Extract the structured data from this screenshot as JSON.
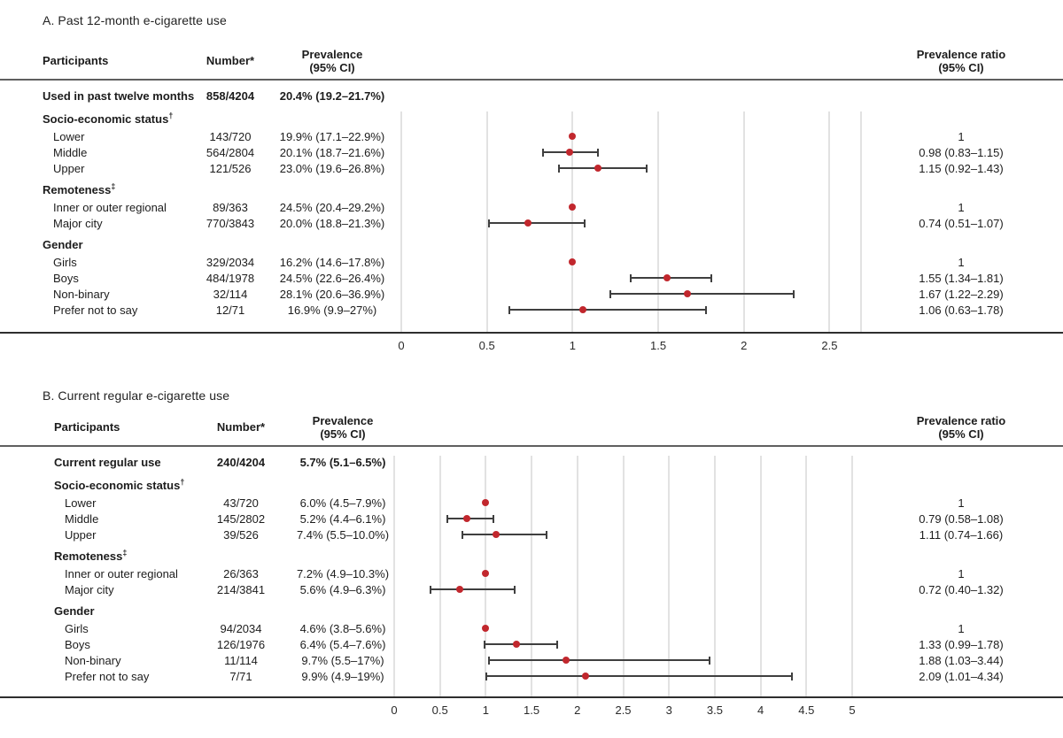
{
  "figure": {
    "colors": {
      "point_red": "#c1272d",
      "ci_whisker": "#3f3f3f",
      "gridline": "#c4c4c4",
      "text": "#1c1c1c"
    }
  },
  "chart_data": [
    {
      "panel": "A",
      "type": "scatter",
      "title": "A. Past 12-month e-cigarette use",
      "headers": {
        "participants": "Participants",
        "number": "Number*",
        "prevalence": [
          "Prevalence",
          "(95% CI)"
        ],
        "ratio": [
          "Prevalence ratio",
          "(95% CI)"
        ]
      },
      "axis": {
        "label": "prevalence ratio",
        "min": 0,
        "max": 2.684,
        "tick_values": [
          0,
          0.5,
          1,
          1.5,
          2,
          2.5
        ],
        "tick_labels": [
          "0",
          "0.5",
          "1",
          "1.5",
          "2",
          "2.5"
        ],
        "grid": true,
        "edge_line": true
      },
      "rows": [
        {
          "type": "overall",
          "label": "Used in past twelve months",
          "number": "858/4204",
          "prevalence": "20.4% (19.2–21.7%)"
        },
        {
          "type": "group",
          "label": "Socio-economic status",
          "sup": "†"
        },
        {
          "type": "item",
          "label": "Lower",
          "number": "143/720",
          "prevalence": "19.9% (17.1–22.9%)",
          "ratio_text": "1",
          "est": 1
        },
        {
          "type": "item",
          "label": "Middle",
          "number": "564/2804",
          "prevalence": "20.1% (18.7–21.6%)",
          "ratio_text": "0.98 (0.83–1.15)",
          "est": 0.98,
          "lo": 0.83,
          "hi": 1.15
        },
        {
          "type": "item",
          "label": "Upper",
          "number": "121/526",
          "prevalence": "23.0% (19.6–26.8%)",
          "ratio_text": "1.15 (0.92–1.43)",
          "est": 1.15,
          "lo": 0.92,
          "hi": 1.43
        },
        {
          "type": "group",
          "label": "Remoteness",
          "sup": "‡"
        },
        {
          "type": "item",
          "label": "Inner or outer regional",
          "number": "89/363",
          "prevalence": "24.5% (20.4–29.2%)",
          "ratio_text": "1",
          "est": 1
        },
        {
          "type": "item",
          "label": "Major city",
          "number": "770/3843",
          "prevalence": "20.0% (18.8–21.3%)",
          "ratio_text": "0.74 (0.51–1.07)",
          "est": 0.74,
          "lo": 0.51,
          "hi": 1.07
        },
        {
          "type": "group",
          "label": "Gender"
        },
        {
          "type": "item",
          "label": "Girls",
          "number": "329/2034",
          "prevalence": "16.2% (14.6–17.8%)",
          "ratio_text": "1",
          "est": 1
        },
        {
          "type": "item",
          "label": "Boys",
          "number": "484/1978",
          "prevalence": "24.5% (22.6–26.4%)",
          "ratio_text": "1.55 (1.34–1.81)",
          "est": 1.55,
          "lo": 1.34,
          "hi": 1.81
        },
        {
          "type": "item",
          "label": "Non-binary",
          "number": "32/114",
          "prevalence": "28.1% (20.6–36.9%)",
          "ratio_text": "1.67 (1.22–2.29)",
          "est": 1.67,
          "lo": 1.22,
          "hi": 2.29
        },
        {
          "type": "item",
          "label": "Prefer not to say",
          "number": "12/71",
          "prevalence": "16.9% (9.9–27%)",
          "ratio_text": "1.06 (0.63–1.78)",
          "est": 1.06,
          "lo": 0.63,
          "hi": 1.78
        }
      ]
    },
    {
      "panel": "B",
      "type": "scatter",
      "title": "B. Current regular e-cigarette use",
      "headers": {
        "participants": "Participants",
        "number": "Number*",
        "prevalence": [
          "Prevalence",
          "(95% CI)"
        ],
        "ratio": [
          "Prevalence ratio",
          "(95% CI)"
        ]
      },
      "axis": {
        "label": "prevalence ratio",
        "min": 0,
        "max": 5,
        "tick_values": [
          0,
          0.5,
          1,
          1.5,
          2,
          2.5,
          3,
          3.5,
          4,
          4.5,
          5
        ],
        "tick_labels": [
          "0",
          "0.5",
          "1",
          "1.5",
          "2",
          "2.5",
          "3",
          "3.5",
          "4",
          "4.5",
          "5"
        ],
        "grid": true,
        "edge_line": false
      },
      "rows": [
        {
          "type": "overall",
          "label": "Current regular use",
          "number": "240/4204",
          "prevalence": "5.7% (5.1–6.5%)"
        },
        {
          "type": "group",
          "label": "Socio-economic status",
          "sup": "†"
        },
        {
          "type": "item",
          "label": "Lower",
          "number": "43/720",
          "prevalence": "6.0% (4.5–7.9%)",
          "ratio_text": "1",
          "est": 1
        },
        {
          "type": "item",
          "label": "Middle",
          "number": "145/2802",
          "prevalence": "5.2% (4.4–6.1%)",
          "ratio_text": "0.79 (0.58–1.08)",
          "est": 0.79,
          "lo": 0.58,
          "hi": 1.08
        },
        {
          "type": "item",
          "label": "Upper",
          "number": "39/526",
          "prevalence": "7.4% (5.5–10.0%)",
          "ratio_text": "1.11 (0.74–1.66)",
          "est": 1.11,
          "lo": 0.74,
          "hi": 1.66
        },
        {
          "type": "group",
          "label": "Remoteness",
          "sup": "‡"
        },
        {
          "type": "item",
          "label": "Inner or outer regional",
          "number": "26/363",
          "prevalence": "7.2% (4.9–10.3%)",
          "ratio_text": "1",
          "est": 1
        },
        {
          "type": "item",
          "label": "Major city",
          "number": "214/3841",
          "prevalence": "5.6% (4.9–6.3%)",
          "ratio_text": "0.72 (0.40–1.32)",
          "est": 0.72,
          "lo": 0.4,
          "hi": 1.32
        },
        {
          "type": "group",
          "label": "Gender"
        },
        {
          "type": "item",
          "label": "Girls",
          "number": "94/2034",
          "prevalence": "4.6% (3.8–5.6%)",
          "ratio_text": "1",
          "est": 1
        },
        {
          "type": "item",
          "label": "Boys",
          "number": "126/1976",
          "prevalence": "6.4% (5.4–7.6%)",
          "ratio_text": "1.33 (0.99–1.78)",
          "est": 1.33,
          "lo": 0.99,
          "hi": 1.78
        },
        {
          "type": "item",
          "label": "Non-binary",
          "number": "11/114",
          "prevalence": "9.7% (5.5–17%)",
          "ratio_text": "1.88 (1.03–3.44)",
          "est": 1.88,
          "lo": 1.03,
          "hi": 3.44
        },
        {
          "type": "item",
          "label": "Prefer not to say",
          "number": "7/71",
          "prevalence": "9.9% (4.9–19%)",
          "ratio_text": "2.09 (1.01–4.34)",
          "est": 2.09,
          "lo": 1.01,
          "hi": 4.34
        }
      ]
    }
  ]
}
